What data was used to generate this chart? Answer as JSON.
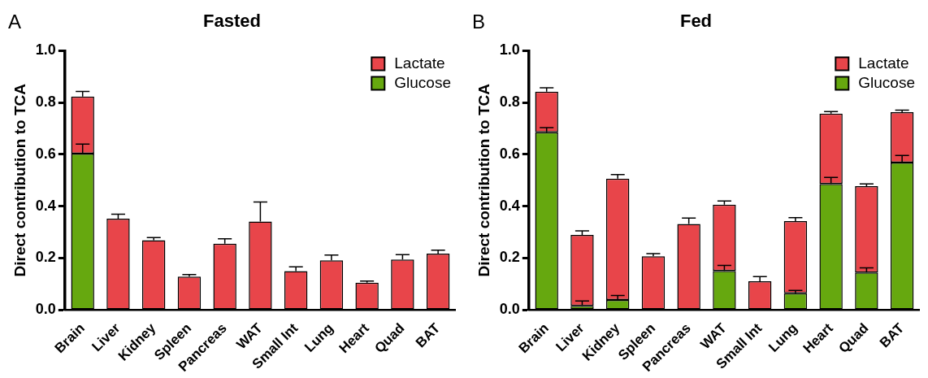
{
  "chart_data": [
    {
      "type": "bar",
      "title": "Fasted",
      "ylabel": "Direct contribution to TCA",
      "annotations": [
        "A"
      ],
      "stacked": true,
      "legend": "top right",
      "grid": false,
      "categories": [
        "Brain",
        "Liver",
        "Kidney",
        "Spleen",
        "Pancreas",
        "WAT",
        "Small Int",
        "Lung",
        "Heart",
        "Quad",
        "BAT"
      ],
      "ylim": [
        0,
        1
      ],
      "yticks": [
        {
          "value": 0,
          "label": "0.0"
        },
        {
          "value": 0.2,
          "label": "0.2"
        },
        {
          "value": 0.4,
          "label": "0.4"
        },
        {
          "value": 0.6,
          "label": "0.6"
        },
        {
          "value": 0.8,
          "label": "0.8"
        },
        {
          "value": 1,
          "label": "1.0"
        }
      ],
      "series": [
        {
          "name": "Glucose",
          "color": "#66a80f",
          "values": [
            0.603,
            null,
            null,
            null,
            null,
            null,
            null,
            null,
            null,
            null,
            null
          ],
          "errors": [
            0.037,
            null,
            null,
            null,
            null,
            null,
            null,
            null,
            null,
            null,
            null
          ]
        },
        {
          "name": "Lactate",
          "color": "#e8454a",
          "values": [
            0.22,
            0.352,
            0.269,
            0.128,
            0.255,
            0.341,
            0.149,
            0.191,
            0.105,
            0.194,
            0.217
          ],
          "errors": [
            0.02,
            0.017,
            0.01,
            0.008,
            0.019,
            0.075,
            0.017,
            0.02,
            0.006,
            0.019,
            0.013
          ]
        }
      ]
    },
    {
      "type": "bar",
      "title": "Fed",
      "ylabel": "Direct contribution to TCA",
      "annotations": [
        "B"
      ],
      "stacked": true,
      "legend": "top right",
      "grid": false,
      "categories": [
        "Brain",
        "Liver",
        "Kidney",
        "Spleen",
        "Pancreas",
        "WAT",
        "Small Int",
        "Lung",
        "Heart",
        "Quad",
        "BAT"
      ],
      "ylim": [
        0,
        1
      ],
      "yticks": [
        {
          "value": 0,
          "label": "0.0"
        },
        {
          "value": 0.2,
          "label": "0.2"
        },
        {
          "value": 0.4,
          "label": "0.4"
        },
        {
          "value": 0.6,
          "label": "0.6"
        },
        {
          "value": 0.8,
          "label": "0.8"
        },
        {
          "value": 1,
          "label": "1.0"
        }
      ],
      "series": [
        {
          "name": "Glucose",
          "color": "#66a80f",
          "values": [
            0.685,
            0.015,
            0.038,
            null,
            null,
            0.15,
            null,
            0.064,
            0.486,
            0.144,
            0.568
          ],
          "errors": [
            0.018,
            0.019,
            0.017,
            null,
            null,
            0.021,
            null,
            0.011,
            0.025,
            0.018,
            0.028
          ]
        },
        {
          "name": "Lactate",
          "color": "#e8454a",
          "values": [
            0.157,
            0.274,
            0.468,
            0.207,
            0.331,
            0.256,
            0.11,
            0.278,
            0.271,
            0.333,
            0.195
          ],
          "errors": [
            0.015,
            0.016,
            0.016,
            0.01,
            0.023,
            0.014,
            0.018,
            0.014,
            0.008,
            0.009,
            0.008
          ]
        }
      ]
    }
  ]
}
